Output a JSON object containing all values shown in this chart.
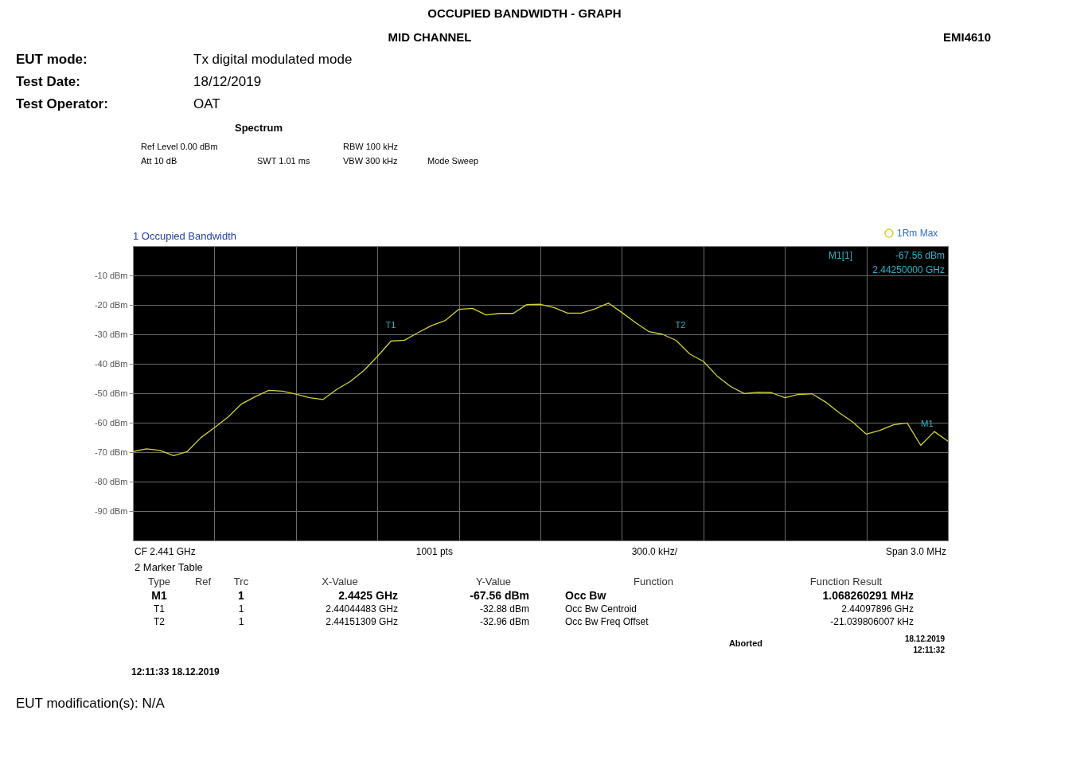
{
  "chart_data": {
    "type": "line",
    "title": "OCCUPIED BANDWIDTH - GRAPH",
    "subtitle": "1 Occupied Bandwidth",
    "categories": [
      null,
      null,
      null,
      null,
      null,
      null,
      null,
      null,
      null,
      null,
      null,
      null,
      null,
      null,
      null,
      null,
      null,
      null,
      null,
      null,
      null,
      null,
      null,
      null,
      null,
      null,
      null,
      null,
      null,
      null,
      null,
      null,
      null,
      null,
      null,
      null,
      null,
      null,
      null,
      null,
      null,
      null,
      null,
      null,
      null,
      null,
      null,
      null,
      null,
      null,
      null,
      null,
      null,
      null,
      null,
      null,
      null,
      null,
      null,
      null,
      null
    ],
    "series": [
      {
        "name": "1Rm Max",
        "color": "#d2d232",
        "values": [
          -69.8,
          -68.9,
          -69.4,
          -71.2,
          -69.8,
          -65.1,
          -61.7,
          -58.1,
          -53.6,
          -51.2,
          -49.0,
          -49.3,
          -50.3,
          -51.5,
          -52.1,
          -48.7,
          -46.0,
          -42.3,
          -37.5,
          -32.3,
          -32.0,
          -29.4,
          -27.0,
          -25.3,
          -21.5,
          -21.2,
          -23.4,
          -22.9,
          -22.9,
          -19.9,
          -19.8,
          -20.9,
          -22.8,
          -22.8,
          -21.4,
          -19.4,
          -22.6,
          -26.0,
          -29.1,
          -30.0,
          -32.1,
          -36.7,
          -39.2,
          -44.1,
          -47.7,
          -50.1,
          -49.7,
          -49.8,
          -51.5,
          -50.4,
          -50.2,
          -53.0,
          -56.6,
          -59.8,
          -63.9,
          -62.6,
          -60.7,
          -60.1,
          -67.7,
          -63.0,
          -66.3
        ]
      }
    ],
    "ylim": [
      -100,
      0
    ],
    "yticks": [
      {
        "value": -10,
        "label": "-10 dBm"
      },
      {
        "value": -20,
        "label": "-20 dBm"
      },
      {
        "value": -30,
        "label": "-30 dBm"
      },
      {
        "value": -40,
        "label": "-40 dBm"
      },
      {
        "value": -50,
        "label": "-50 dBm"
      },
      {
        "value": -60,
        "label": "-60 dBm"
      },
      {
        "value": -70,
        "label": "-70 dBm"
      },
      {
        "value": -80,
        "label": "-80 dBm"
      },
      {
        "value": -90,
        "label": "-90 dBm"
      }
    ],
    "tick_labels": "y",
    "grid": true,
    "legend": "top right",
    "annotations": [
      "MID CHANNEL",
      "EMI4610",
      "EUT mode:",
      "Tx digital modulated mode",
      "Test Date:",
      "18/12/2019",
      "Test Operator:",
      "OAT",
      "Spectrum",
      "Ref Level 0.00 dBm",
      "RBW 100 kHz",
      "Att 10 dB",
      "SWT 1.01 ms",
      "VBW 300 kHz",
      "Mode Sweep",
      "T1",
      "T2",
      "M1",
      "M1[1]",
      "-67.56 dBm",
      "2.44250000 GHz",
      "CF 2.441 GHz",
      "1001 pts",
      "300.0 kHz/",
      "Span 3.0 MHz",
      "2 Marker Table",
      "Type",
      "Ref",
      "Trc",
      "X-Value",
      "Y-Value",
      "Function",
      "Function Result",
      "M1",
      "1",
      "2.4425 GHz",
      "-67.56 dBm",
      "Occ Bw",
      "1.068260291 MHz",
      "T1",
      "1",
      "2.44044483 GHz",
      "-32.88 dBm",
      "Occ Bw Centroid",
      "2.44097896 GHz",
      "T2",
      "1",
      "2.44151309 GHz",
      "-32.96 dBm",
      "Occ Bw Freq Offset",
      "-21.039806007 kHz",
      "Aborted",
      "18.12.2019",
      "12:11:32",
      "12:11:33 18.12.2019",
      "EUT modification(s): N/A"
    ]
  }
}
